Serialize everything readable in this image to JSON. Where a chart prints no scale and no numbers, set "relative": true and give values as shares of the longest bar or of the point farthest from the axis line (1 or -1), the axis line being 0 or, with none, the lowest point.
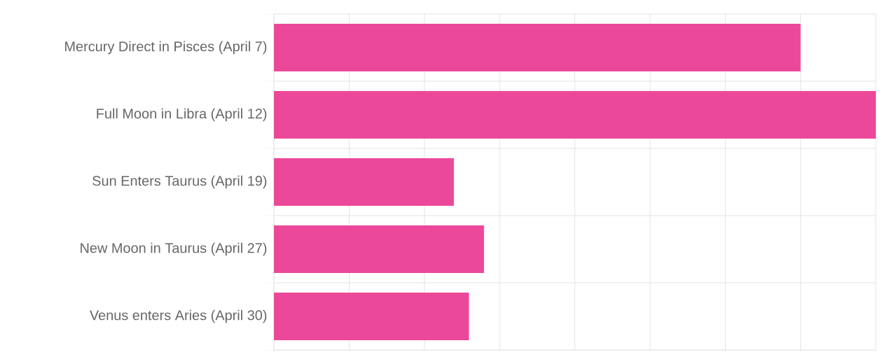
{
  "chart_data": {
    "type": "bar",
    "orientation": "horizontal",
    "relative": true,
    "categories": [
      "Mercury Direct in Pisces (April 7)",
      "Full Moon in Libra (April 12)",
      "Sun Enters Taurus (April 19)",
      "New Moon in Taurus (April 27)",
      "Venus enters Aries (April 30)"
    ],
    "values": [
      0.875,
      1,
      0.299,
      0.349,
      0.324
    ],
    "color": "#ec4899",
    "grid": true
  }
}
